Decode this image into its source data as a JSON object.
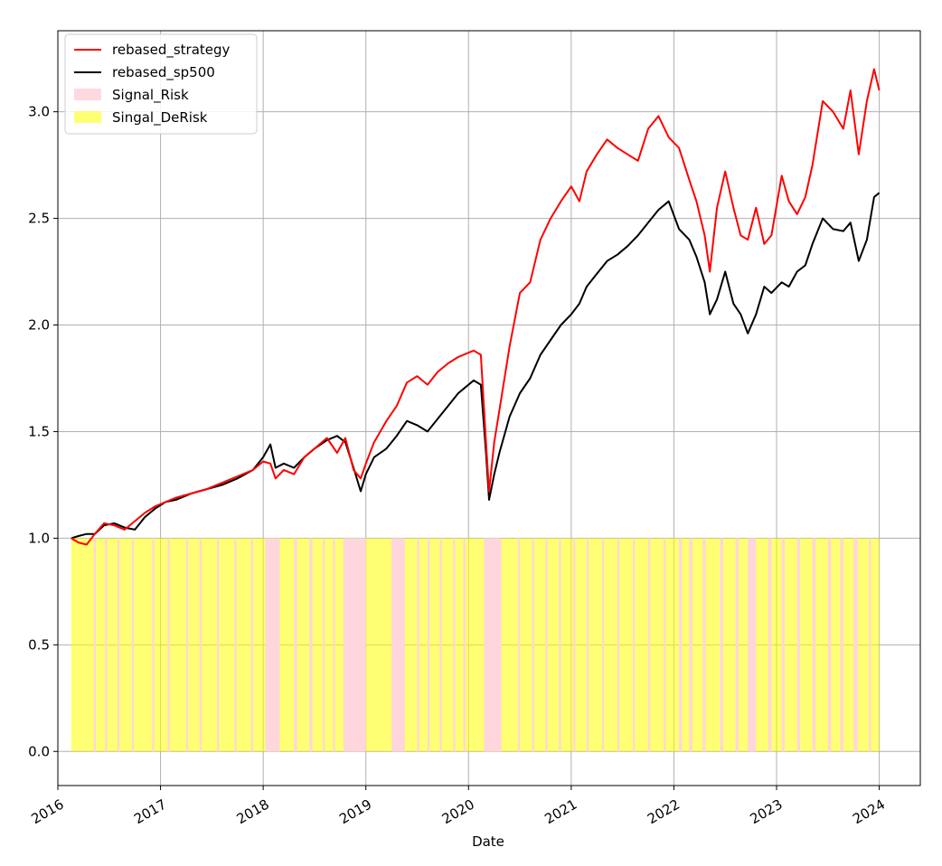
{
  "chart_data": {
    "type": "line",
    "title": "",
    "xlabel": "Date",
    "ylabel": "",
    "xlim": [
      2016.0,
      2024.4
    ],
    "ylim": [
      -0.16,
      3.38
    ],
    "grid": true,
    "legend_position": "top-left",
    "x_ticks": [
      {
        "value": 2016,
        "label": "2016"
      },
      {
        "value": 2017,
        "label": "2017"
      },
      {
        "value": 2018,
        "label": "2018"
      },
      {
        "value": 2019,
        "label": "2019"
      },
      {
        "value": 2020,
        "label": "2020"
      },
      {
        "value": 2021,
        "label": "2021"
      },
      {
        "value": 2022,
        "label": "2022"
      },
      {
        "value": 2023,
        "label": "2023"
      },
      {
        "value": 2024,
        "label": "2024"
      }
    ],
    "y_ticks": [
      {
        "value": 0.0,
        "label": "0.0"
      },
      {
        "value": 0.5,
        "label": "0.5"
      },
      {
        "value": 1.0,
        "label": "1.0"
      },
      {
        "value": 1.5,
        "label": "1.5"
      },
      {
        "value": 2.0,
        "label": "2.0"
      },
      {
        "value": 2.5,
        "label": "2.5"
      },
      {
        "value": 3.0,
        "label": "3.0"
      }
    ],
    "series": [
      {
        "name": "rebased_strategy",
        "color": "#ff0000",
        "x": [
          2016.13,
          2016.2,
          2016.28,
          2016.36,
          2016.45,
          2016.55,
          2016.65,
          2016.75,
          2016.85,
          2016.95,
          2017.05,
          2017.15,
          2017.3,
          2017.45,
          2017.6,
          2017.75,
          2017.9,
          2018.0,
          2018.07,
          2018.12,
          2018.2,
          2018.3,
          2018.4,
          2018.5,
          2018.62,
          2018.72,
          2018.8,
          2018.88,
          2018.95,
          2019.0,
          2019.08,
          2019.2,
          2019.3,
          2019.4,
          2019.5,
          2019.6,
          2019.7,
          2019.8,
          2019.9,
          2020.05,
          2020.12,
          2020.17,
          2020.2,
          2020.25,
          2020.3,
          2020.4,
          2020.5,
          2020.6,
          2020.7,
          2020.8,
          2020.9,
          2021.0,
          2021.08,
          2021.15,
          2021.25,
          2021.35,
          2021.45,
          2021.55,
          2021.65,
          2021.75,
          2021.85,
          2021.95,
          2022.05,
          2022.15,
          2022.22,
          2022.3,
          2022.35,
          2022.42,
          2022.5,
          2022.58,
          2022.65,
          2022.72,
          2022.8,
          2022.88,
          2022.95,
          2023.05,
          2023.12,
          2023.2,
          2023.28,
          2023.35,
          2023.45,
          2023.55,
          2023.65,
          2023.72,
          2023.8,
          2023.88,
          2023.95,
          2024.0
        ],
        "values": [
          1.0,
          0.98,
          0.97,
          1.02,
          1.07,
          1.06,
          1.04,
          1.08,
          1.12,
          1.15,
          1.17,
          1.19,
          1.21,
          1.23,
          1.26,
          1.29,
          1.32,
          1.36,
          1.35,
          1.28,
          1.32,
          1.3,
          1.38,
          1.42,
          1.47,
          1.4,
          1.47,
          1.32,
          1.28,
          1.35,
          1.45,
          1.55,
          1.62,
          1.73,
          1.76,
          1.72,
          1.78,
          1.82,
          1.85,
          1.88,
          1.86,
          1.45,
          1.22,
          1.45,
          1.6,
          1.9,
          2.15,
          2.2,
          2.4,
          2.5,
          2.58,
          2.65,
          2.58,
          2.72,
          2.8,
          2.87,
          2.83,
          2.8,
          2.77,
          2.92,
          2.98,
          2.88,
          2.83,
          2.68,
          2.58,
          2.42,
          2.25,
          2.55,
          2.72,
          2.55,
          2.42,
          2.4,
          2.55,
          2.38,
          2.42,
          2.7,
          2.58,
          2.52,
          2.6,
          2.75,
          3.05,
          3.0,
          2.92,
          3.1,
          2.8,
          3.05,
          3.2,
          3.1
        ]
      },
      {
        "name": "rebased_sp500",
        "color": "#000000",
        "x": [
          2016.13,
          2016.2,
          2016.28,
          2016.36,
          2016.45,
          2016.55,
          2016.65,
          2016.75,
          2016.85,
          2016.95,
          2017.05,
          2017.15,
          2017.3,
          2017.45,
          2017.6,
          2017.75,
          2017.9,
          2018.0,
          2018.07,
          2018.12,
          2018.2,
          2018.3,
          2018.4,
          2018.5,
          2018.62,
          2018.72,
          2018.8,
          2018.88,
          2018.95,
          2019.0,
          2019.08,
          2019.2,
          2019.3,
          2019.4,
          2019.5,
          2019.6,
          2019.7,
          2019.8,
          2019.9,
          2020.05,
          2020.12,
          2020.17,
          2020.2,
          2020.25,
          2020.3,
          2020.4,
          2020.5,
          2020.6,
          2020.7,
          2020.8,
          2020.9,
          2021.0,
          2021.08,
          2021.15,
          2021.25,
          2021.35,
          2021.45,
          2021.55,
          2021.65,
          2021.75,
          2021.85,
          2021.95,
          2022.05,
          2022.15,
          2022.22,
          2022.3,
          2022.35,
          2022.42,
          2022.5,
          2022.58,
          2022.65,
          2022.72,
          2022.8,
          2022.88,
          2022.95,
          2023.05,
          2023.12,
          2023.2,
          2023.28,
          2023.35,
          2023.45,
          2023.55,
          2023.65,
          2023.72,
          2023.8,
          2023.88,
          2023.95,
          2024.0
        ],
        "values": [
          1.0,
          1.01,
          1.02,
          1.02,
          1.06,
          1.07,
          1.05,
          1.04,
          1.1,
          1.14,
          1.17,
          1.18,
          1.21,
          1.23,
          1.25,
          1.28,
          1.32,
          1.38,
          1.44,
          1.33,
          1.35,
          1.33,
          1.38,
          1.42,
          1.46,
          1.48,
          1.45,
          1.33,
          1.22,
          1.3,
          1.38,
          1.42,
          1.48,
          1.55,
          1.53,
          1.5,
          1.56,
          1.62,
          1.68,
          1.74,
          1.72,
          1.4,
          1.18,
          1.3,
          1.4,
          1.57,
          1.68,
          1.75,
          1.86,
          1.93,
          2.0,
          2.05,
          2.1,
          2.18,
          2.24,
          2.3,
          2.33,
          2.37,
          2.42,
          2.48,
          2.54,
          2.58,
          2.45,
          2.4,
          2.32,
          2.2,
          2.05,
          2.12,
          2.25,
          2.1,
          2.05,
          1.96,
          2.05,
          2.18,
          2.15,
          2.2,
          2.18,
          2.25,
          2.28,
          2.38,
          2.5,
          2.45,
          2.44,
          2.48,
          2.3,
          2.4,
          2.6,
          2.62
        ]
      }
    ],
    "regions": {
      "height": 1.0,
      "start": 2016.13,
      "end": 2024.0,
      "legend": [
        {
          "name": "Signal_Risk",
          "color": "#ffc0cb"
        },
        {
          "name": "Singal_DeRisk",
          "color": "#ffff00"
        }
      ],
      "risk_spans": [
        [
          2016.35,
          2016.37
        ],
        [
          2016.46,
          2016.48
        ],
        [
          2016.58,
          2016.6
        ],
        [
          2016.72,
          2016.74
        ],
        [
          2016.92,
          2016.94
        ],
        [
          2017.07,
          2017.09
        ],
        [
          2017.25,
          2017.27
        ],
        [
          2017.38,
          2017.4
        ],
        [
          2017.55,
          2017.57
        ],
        [
          2017.72,
          2017.74
        ],
        [
          2017.88,
          2017.9
        ],
        [
          2018.02,
          2018.16
        ],
        [
          2018.3,
          2018.33
        ],
        [
          2018.45,
          2018.48
        ],
        [
          2018.58,
          2018.6
        ],
        [
          2018.68,
          2018.7
        ],
        [
          2018.78,
          2019.0
        ],
        [
          2019.25,
          2019.38
        ],
        [
          2019.5,
          2019.52
        ],
        [
          2019.6,
          2019.62
        ],
        [
          2019.72,
          2019.74
        ],
        [
          2019.85,
          2019.87
        ],
        [
          2019.95,
          2019.97
        ],
        [
          2020.15,
          2020.32
        ],
        [
          2020.48,
          2020.5
        ],
        [
          2020.62,
          2020.64
        ],
        [
          2020.75,
          2020.77
        ],
        [
          2020.88,
          2020.9
        ],
        [
          2021.02,
          2021.04
        ],
        [
          2021.15,
          2021.17
        ],
        [
          2021.3,
          2021.32
        ],
        [
          2021.45,
          2021.47
        ],
        [
          2021.6,
          2021.62
        ],
        [
          2021.75,
          2021.77
        ],
        [
          2021.9,
          2021.92
        ],
        [
          2022.05,
          2022.08
        ],
        [
          2022.15,
          2022.18
        ],
        [
          2022.28,
          2022.31
        ],
        [
          2022.45,
          2022.48
        ],
        [
          2022.6,
          2022.63
        ],
        [
          2022.72,
          2022.8
        ],
        [
          2022.92,
          2022.95
        ],
        [
          2023.05,
          2023.08
        ],
        [
          2023.2,
          2023.23
        ],
        [
          2023.35,
          2023.38
        ],
        [
          2023.5,
          2023.53
        ],
        [
          2023.62,
          2023.65
        ],
        [
          2023.75,
          2023.79
        ],
        [
          2023.9,
          2023.92
        ]
      ]
    },
    "legend": [
      {
        "name": "rebased_strategy",
        "kind": "line",
        "color": "#ff0000"
      },
      {
        "name": "rebased_sp500",
        "kind": "line",
        "color": "#000000"
      },
      {
        "name": "Signal_Risk",
        "kind": "patch",
        "color": "#ffc0cb"
      },
      {
        "name": "Singal_DeRisk",
        "kind": "patch",
        "color": "#ffff00"
      }
    ]
  }
}
